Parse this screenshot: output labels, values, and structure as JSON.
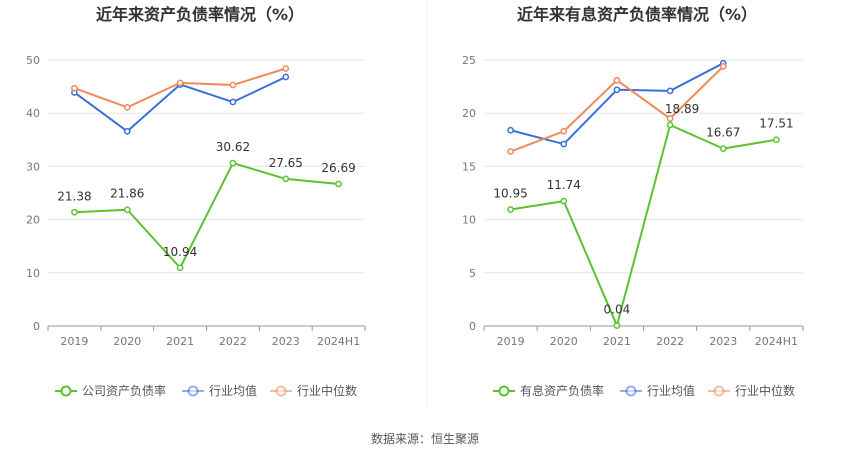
{
  "source": "数据来源：恒生聚源",
  "chart_data": [
    {
      "type": "line",
      "title": "近年来资产负债率情况（%）",
      "categories": [
        "2019",
        "2020",
        "2021",
        "2022",
        "2023",
        "2024H1"
      ],
      "ylim": [
        0,
        50
      ],
      "yticks": [
        0,
        10,
        20,
        30,
        40,
        50
      ],
      "grid": true,
      "legend_position": "bottom",
      "series": [
        {
          "name": "公司资产负债率",
          "color": "#5cc230",
          "values": [
            21.38,
            21.86,
            10.94,
            30.62,
            27.65,
            26.69
          ],
          "labels": [
            "21.38",
            "21.86",
            "10.94",
            "30.62",
            "27.65",
            "26.69"
          ]
        },
        {
          "name": "行业均值",
          "color": "#3a6fd8",
          "values": [
            43.9,
            36.6,
            45.4,
            42.1,
            46.8,
            null
          ]
        },
        {
          "name": "行业中位数",
          "color": "#ef8a5a",
          "values": [
            44.7,
            41.1,
            45.7,
            45.3,
            48.4,
            null
          ]
        }
      ]
    },
    {
      "type": "line",
      "title": "近年来有息资产负债率情况（%）",
      "categories": [
        "2019",
        "2020",
        "2021",
        "2022",
        "2023",
        "2024H1"
      ],
      "ylim": [
        0,
        25
      ],
      "yticks": [
        0,
        5,
        10,
        15,
        20,
        25
      ],
      "grid": true,
      "legend_position": "bottom",
      "series": [
        {
          "name": "有息资产负债率",
          "color": "#5cc230",
          "values": [
            10.95,
            11.74,
            0.04,
            18.89,
            16.67,
            17.51
          ],
          "labels": [
            "10.95",
            "11.74",
            "0.04",
            "18.89",
            "16.67",
            "17.51"
          ]
        },
        {
          "name": "行业均值",
          "color": "#3a6fd8",
          "values": [
            18.4,
            17.1,
            22.2,
            22.1,
            24.7,
            null
          ]
        },
        {
          "name": "行业中位数",
          "color": "#ef8a5a",
          "values": [
            16.4,
            18.3,
            23.1,
            19.5,
            24.4,
            null
          ]
        }
      ]
    }
  ]
}
